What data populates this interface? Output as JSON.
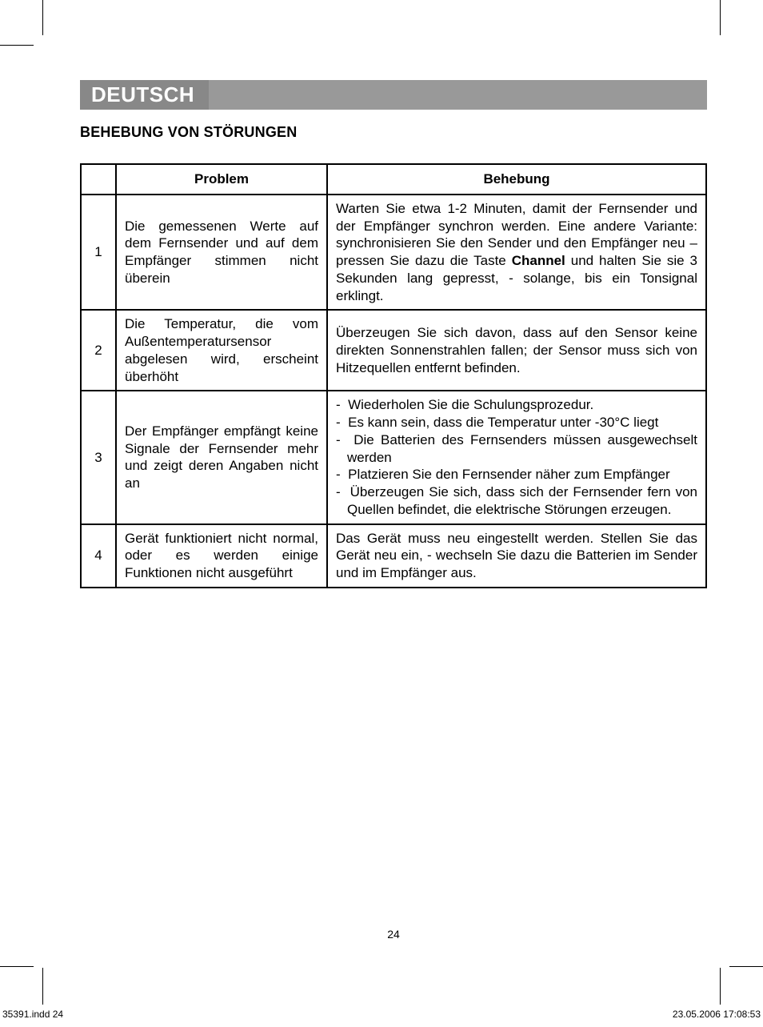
{
  "header": {
    "language": "DEUTSCH"
  },
  "section_title": "BEHEBUNG VON STÖRUNGEN",
  "table": {
    "headers": {
      "num": "",
      "problem": "Problem",
      "fix": "Behebung"
    },
    "rows": [
      {
        "num": "1",
        "problem": "Die gemessenen Werte auf dem Fernsender und auf dem Empfänger stimmen nicht überein",
        "fix_before": "Warten Sie etwa 1-2 Minuten, damit der Fernsender und der Empfänger synchron werden. Eine andere Variante: synchronisieren Sie den Sender und den Empfänger neu – pressen Sie dazu die Taste ",
        "fix_bold": "Channel",
        "fix_after": " und halten Sie sie 3 Sekunden lang gepresst, - solange, bis ein Tonsignal erklingt."
      },
      {
        "num": "2",
        "problem": "Die Temperatur, die vom Außentemperatursensor abgelesen wird, erscheint überhöht",
        "fix_text": "Überzeugen Sie sich davon, dass auf den Sensor keine direkten Sonnenstrahlen fallen; der Sensor muss sich von Hitzequellen entfernt befinden."
      },
      {
        "num": "3",
        "problem": "Der Empfänger empfängt keine Signale der Fernsender mehr und zeigt deren Angaben nicht an",
        "fix_list": [
          "Wiederholen Sie die Schulungsprozedur.",
          "Es kann sein, dass die Temperatur unter -30°C liegt",
          "Die Batterien des Fernsenders müssen ausgewechselt werden",
          "Platzieren Sie den Fernsender näher zum Empfänger",
          "Überzeugen Sie sich, dass sich der Fernsender fern von Quellen befindet, die elektrische Störungen erzeugen."
        ]
      },
      {
        "num": "4",
        "problem": "Gerät funktioniert nicht normal, oder es werden einige Funktionen nicht ausgeführt",
        "fix_text": "Das Gerät muss neu eingestellt werden. Stellen Sie das Gerät neu ein, - wechseln Sie dazu die Batterien im Sender und im Empfänger aus."
      }
    ]
  },
  "page_number": "24",
  "footer": {
    "left": "35391.indd   24",
    "right": "23.05.2006   17:08:53"
  },
  "colors": {
    "header_tab_bg": "#888888",
    "header_rest_bg": "#999999",
    "header_text": "#ffffff",
    "text": "#000000",
    "border": "#000000"
  }
}
